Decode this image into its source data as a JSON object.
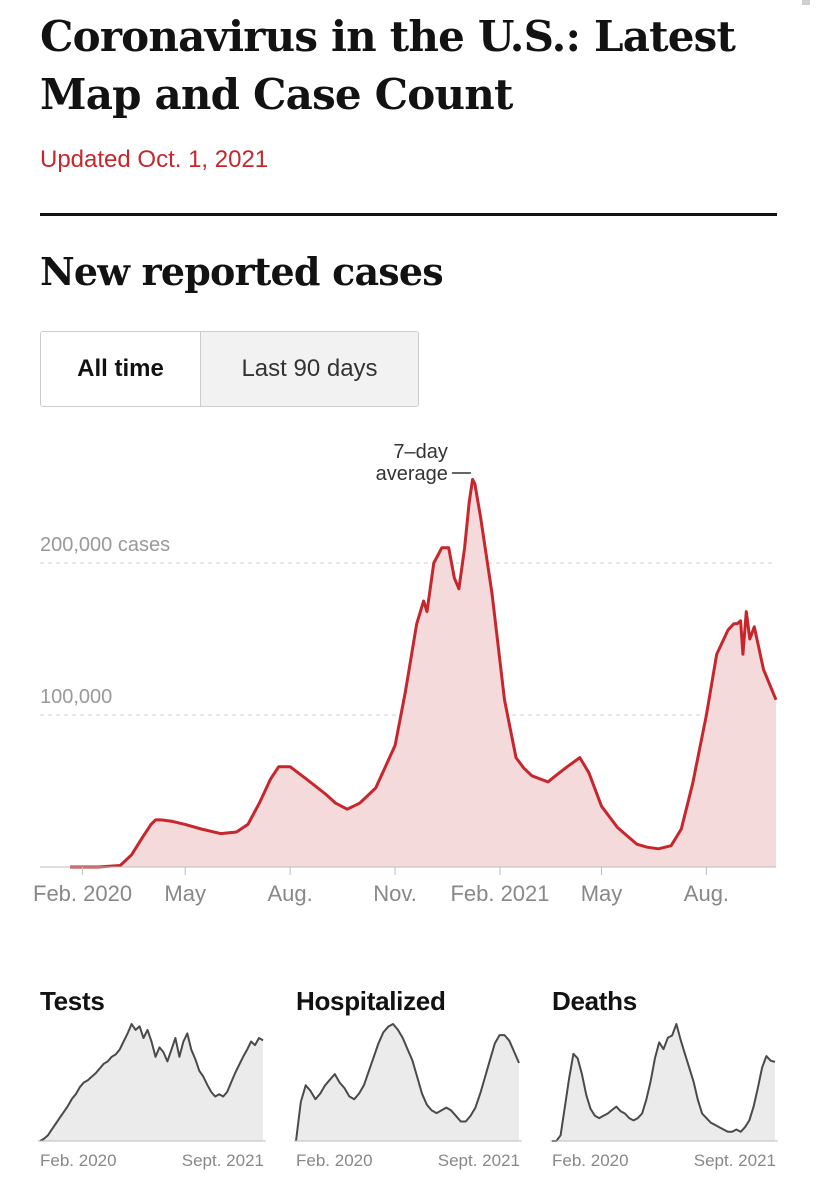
{
  "header": {
    "title": "Coronavirus in the U.S.: Latest Map and Case Count",
    "updated": "Updated Oct. 1, 2021"
  },
  "colors": {
    "accent": "#c6262c",
    "area_fill": "#f4dadb",
    "small_line": "#4a4a4a",
    "small_fill": "#ebebeb"
  },
  "section": {
    "title": "New reported cases"
  },
  "toggle": {
    "all_time": "All time",
    "last_90": "Last 90 days",
    "selected": "All time"
  },
  "chart_data": [
    {
      "type": "area",
      "title": "New reported cases",
      "ylim": [
        0,
        260000
      ],
      "y_ticks": [
        {
          "value": 200000,
          "label": "200,000 cases"
        },
        {
          "value": 100000,
          "label": "100,000"
        }
      ],
      "xlim": [
        "2020-01-21",
        "2021-10-01"
      ],
      "x_ticks": [
        {
          "date": "2020-02-01",
          "label": "Feb. 2020"
        },
        {
          "date": "2020-05-01",
          "label": "May"
        },
        {
          "date": "2020-08-01",
          "label": "Aug."
        },
        {
          "date": "2020-11-01",
          "label": "Nov."
        },
        {
          "date": "2021-02-01",
          "label": "Feb. 2021"
        },
        {
          "date": "2021-05-01",
          "label": "May"
        },
        {
          "date": "2021-08-01",
          "label": "Aug."
        }
      ],
      "annotation": {
        "lines": [
          "7–day",
          "average"
        ],
        "date": "2021-01-10"
      },
      "series": [
        {
          "x": [
            "2020-01-21",
            "2020-02-15",
            "2020-03-05",
            "2020-03-15",
            "2020-03-25",
            "2020-04-01",
            "2020-04-05",
            "2020-04-10",
            "2020-04-20",
            "2020-05-01",
            "2020-05-15",
            "2020-06-01",
            "2020-06-15",
            "2020-06-25",
            "2020-07-05",
            "2020-07-15",
            "2020-07-22",
            "2020-08-01",
            "2020-08-15",
            "2020-09-01",
            "2020-09-10",
            "2020-09-20",
            "2020-10-01",
            "2020-10-15",
            "2020-11-01",
            "2020-11-10",
            "2020-11-20",
            "2020-11-26",
            "2020-11-29",
            "2020-12-05",
            "2020-12-12",
            "2020-12-18",
            "2020-12-23",
            "2020-12-27",
            "2021-01-01",
            "2021-01-05",
            "2021-01-08",
            "2021-01-10",
            "2021-01-15",
            "2021-01-25",
            "2021-02-05",
            "2021-02-15",
            "2021-02-22",
            "2021-03-01",
            "2021-03-15",
            "2021-03-25",
            "2021-04-01",
            "2021-04-12",
            "2021-04-20",
            "2021-05-01",
            "2021-05-15",
            "2021-06-01",
            "2021-06-10",
            "2021-06-20",
            "2021-07-01",
            "2021-07-10",
            "2021-07-20",
            "2021-08-01",
            "2021-08-10",
            "2021-08-20",
            "2021-08-25",
            "2021-08-28",
            "2021-08-31",
            "2021-09-02",
            "2021-09-05",
            "2021-09-08",
            "2021-09-12",
            "2021-09-20",
            "2021-10-01"
          ],
          "values": [
            0,
            0,
            1000,
            8000,
            20000,
            28000,
            31000,
            31000,
            30000,
            28000,
            25000,
            22000,
            23000,
            28000,
            42000,
            58000,
            66000,
            66000,
            58000,
            48000,
            42000,
            38000,
            42000,
            52000,
            80000,
            115000,
            160000,
            175000,
            168000,
            200000,
            210000,
            210000,
            190000,
            183000,
            210000,
            240000,
            255000,
            252000,
            230000,
            180000,
            110000,
            72000,
            65000,
            60000,
            56000,
            62000,
            66000,
            72000,
            62000,
            40000,
            26000,
            15000,
            13000,
            12000,
            14000,
            25000,
            55000,
            100000,
            140000,
            156000,
            160000,
            160000,
            162000,
            140000,
            168000,
            150000,
            158000,
            130000,
            110000
          ]
        }
      ]
    },
    {
      "type": "area",
      "title": "Tests",
      "x_ticks": [
        "Feb. 2020",
        "Sept. 2021"
      ],
      "values": [
        0,
        2,
        5,
        10,
        15,
        20,
        25,
        30,
        36,
        40,
        46,
        50,
        52,
        55,
        58,
        62,
        66,
        68,
        72,
        74,
        78,
        85,
        92,
        100,
        95,
        98,
        88,
        95,
        85,
        72,
        80,
        76,
        68,
        78,
        88,
        72,
        85,
        92,
        78,
        70,
        60,
        55,
        48,
        42,
        38,
        40,
        38,
        42,
        50,
        58,
        65,
        72,
        78,
        85,
        82,
        88,
        86
      ]
    },
    {
      "type": "area",
      "title": "Hospitalized",
      "x_ticks": [
        "Feb. 2020",
        "Sept. 2021"
      ],
      "values": [
        0,
        28,
        40,
        36,
        30,
        34,
        40,
        44,
        48,
        42,
        38,
        32,
        30,
        34,
        40,
        50,
        60,
        70,
        78,
        82,
        84,
        80,
        74,
        66,
        58,
        46,
        34,
        26,
        22,
        20,
        22,
        24,
        22,
        18,
        14,
        14,
        18,
        24,
        34,
        46,
        58,
        70,
        76,
        76,
        72,
        64,
        56
      ]
    },
    {
      "type": "area",
      "title": "Deaths",
      "x_ticks": [
        "Feb. 2020",
        "Sept. 2021"
      ],
      "values": [
        0,
        0,
        5,
        30,
        55,
        76,
        72,
        58,
        40,
        28,
        22,
        20,
        22,
        24,
        27,
        30,
        26,
        24,
        20,
        18,
        20,
        24,
        36,
        52,
        72,
        86,
        80,
        90,
        92,
        102,
        88,
        76,
        64,
        52,
        36,
        24,
        20,
        16,
        14,
        12,
        10,
        8,
        8,
        10,
        8,
        12,
        18,
        30,
        46,
        64,
        74,
        70,
        69
      ]
    }
  ]
}
